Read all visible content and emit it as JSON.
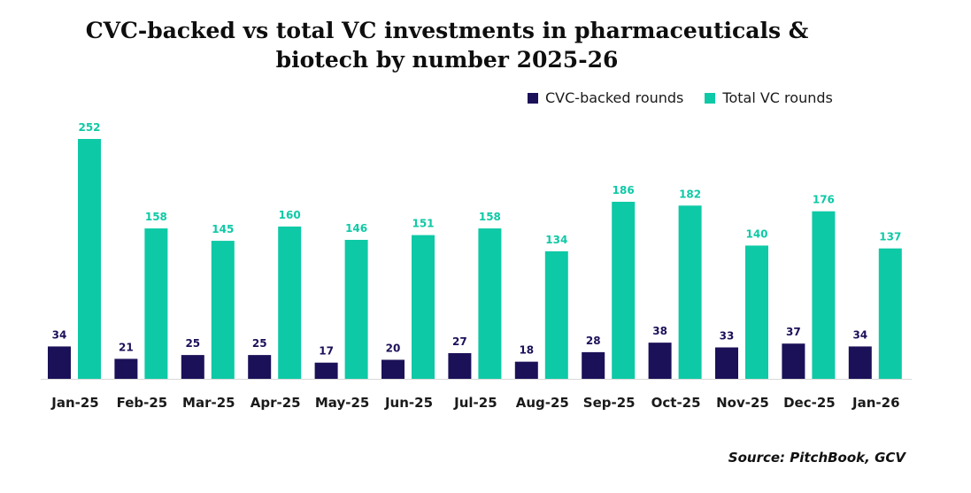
{
  "chart_data": {
    "type": "bar",
    "title_line1": "CVC-backed vs total VC investments in pharmaceuticals &",
    "title_line2": "biotech by number 2025-26",
    "categories": [
      "Jan-25",
      "Feb-25",
      "Mar-25",
      "Apr-25",
      "May-25",
      "Jun-25",
      "Jul-25",
      "Aug-25",
      "Sep-25",
      "Oct-25",
      "Nov-25",
      "Dec-25",
      "Jan-26"
    ],
    "series": [
      {
        "name": "CVC-backed rounds",
        "color": "#1b1159",
        "values": [
          34,
          21,
          25,
          25,
          17,
          20,
          27,
          18,
          28,
          38,
          33,
          37,
          34
        ]
      },
      {
        "name": "Total VC rounds",
        "color": "#0ec9a6",
        "values": [
          252,
          158,
          145,
          160,
          146,
          151,
          158,
          134,
          186,
          182,
          140,
          176,
          137
        ]
      }
    ],
    "ylim": [
      0,
      252
    ],
    "grid": false,
    "legend_position": "top-right",
    "source": "Source: PitchBook, GCV"
  }
}
